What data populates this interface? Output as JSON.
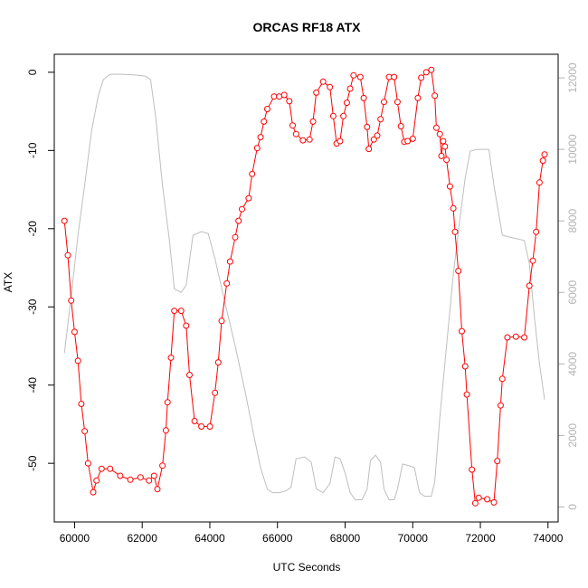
{
  "chart_data": {
    "type": "line",
    "title": "ORCAS RF18 ATX",
    "xlabel": "UTC Seconds",
    "ylabel": "ATX",
    "y2label": "",
    "xlim": [
      59400,
      74300
    ],
    "ylim": [
      -57.5,
      2.3
    ],
    "y2lim": [
      -420,
      12660
    ],
    "x_ticks": [
      60000,
      62000,
      64000,
      66000,
      68000,
      70000,
      72000,
      74000
    ],
    "x_tick_labels": [
      "60000",
      "62000",
      "64000",
      "66000",
      "68000",
      "70000",
      "72000",
      "74000"
    ],
    "y_ticks": [
      0,
      -10,
      -20,
      -30,
      -40,
      -50
    ],
    "y_tick_labels": [
      "0",
      "-10",
      "-20",
      "-30",
      "-40",
      "-50"
    ],
    "y2_ticks": [
      0,
      2000,
      4000,
      6000,
      8000,
      10000,
      12000
    ],
    "y2_tick_labels": [
      "0",
      "2000",
      "4000",
      "6000",
      "8000",
      "10000",
      "12000"
    ],
    "grid": false,
    "colors": {
      "atx": "#ff0000",
      "secondary": "#bebebe",
      "axis": "#000000",
      "axis_right": "#b3b3b3"
    },
    "series": [
      {
        "axis": "left",
        "marker": "open-circle",
        "points": [
          [
            59700,
            -19.0
          ],
          [
            59800,
            -23.4
          ],
          [
            59900,
            -29.2
          ],
          [
            60000,
            -33.2
          ],
          [
            60100,
            -36.9
          ],
          [
            60200,
            -42.4
          ],
          [
            60300,
            -45.9
          ],
          [
            60400,
            -50.0
          ],
          [
            60550,
            -53.7
          ],
          [
            60650,
            -52.2
          ],
          [
            60800,
            -50.7
          ],
          [
            61050,
            -50.7
          ],
          [
            61350,
            -51.6
          ],
          [
            61650,
            -52.1
          ],
          [
            61950,
            -51.8
          ],
          [
            62200,
            -52.2
          ],
          [
            62350,
            -51.6
          ],
          [
            62450,
            -53.3
          ],
          [
            62600,
            -50.3
          ],
          [
            62700,
            -45.8
          ],
          [
            62750,
            -42.2
          ],
          [
            62850,
            -36.5
          ],
          [
            62950,
            -30.5
          ],
          [
            63150,
            -30.5
          ],
          [
            63300,
            -32.4
          ],
          [
            63400,
            -38.7
          ],
          [
            63550,
            -44.6
          ],
          [
            63750,
            -45.3
          ],
          [
            64000,
            -45.3
          ],
          [
            64150,
            -41.0
          ],
          [
            64250,
            -37.1
          ],
          [
            64350,
            -31.8
          ],
          [
            64500,
            -27.0
          ],
          [
            64600,
            -24.2
          ],
          [
            64750,
            -21.1
          ],
          [
            64850,
            -19.0
          ],
          [
            64950,
            -17.5
          ],
          [
            65150,
            -16.1
          ],
          [
            65250,
            -13.0
          ],
          [
            65400,
            -9.7
          ],
          [
            65500,
            -8.3
          ],
          [
            65600,
            -6.3
          ],
          [
            65700,
            -4.7
          ],
          [
            65900,
            -3.1
          ],
          [
            66050,
            -3.1
          ],
          [
            66200,
            -2.9
          ],
          [
            66350,
            -3.7
          ],
          [
            66450,
            -6.8
          ],
          [
            66550,
            -7.9
          ],
          [
            66750,
            -8.7
          ],
          [
            66950,
            -8.6
          ],
          [
            67050,
            -6.3
          ],
          [
            67150,
            -2.6
          ],
          [
            67350,
            -1.2
          ],
          [
            67550,
            -1.9
          ],
          [
            67650,
            -5.6
          ],
          [
            67750,
            -9.1
          ],
          [
            67850,
            -8.8
          ],
          [
            67950,
            -5.6
          ],
          [
            68050,
            -3.9
          ],
          [
            68150,
            -2.1
          ],
          [
            68250,
            -0.4
          ],
          [
            68450,
            -0.6
          ],
          [
            68550,
            -3.3
          ],
          [
            68650,
            -7.0
          ],
          [
            68700,
            -9.8
          ],
          [
            68850,
            -8.6
          ],
          [
            68950,
            -8.1
          ],
          [
            69050,
            -6.0
          ],
          [
            69150,
            -3.8
          ],
          [
            69300,
            -0.6
          ],
          [
            69450,
            -0.6
          ],
          [
            69550,
            -3.8
          ],
          [
            69650,
            -6.9
          ],
          [
            69750,
            -8.9
          ],
          [
            69850,
            -8.8
          ],
          [
            70000,
            -8.5
          ],
          [
            70150,
            -3.3
          ],
          [
            70250,
            -0.7
          ],
          [
            70400,
            0.0
          ],
          [
            70550,
            0.3
          ],
          [
            70650,
            -3.0
          ],
          [
            70700,
            -7.1
          ],
          [
            70800,
            -7.9
          ],
          [
            70850,
            -10.7
          ],
          [
            70900,
            -8.8
          ],
          [
            70950,
            -9.5
          ],
          [
            71000,
            -11.2
          ],
          [
            71100,
            -14.6
          ],
          [
            71200,
            -17.4
          ],
          [
            71250,
            -20.4
          ],
          [
            71350,
            -25.4
          ],
          [
            71450,
            -33.1
          ],
          [
            71550,
            -37.6
          ],
          [
            71600,
            -41.2
          ],
          [
            71750,
            -50.8
          ],
          [
            71850,
            -55.1
          ],
          [
            71950,
            -54.4
          ],
          [
            72200,
            -54.6
          ],
          [
            72400,
            -55.0
          ],
          [
            72500,
            -49.7
          ],
          [
            72600,
            -42.6
          ],
          [
            72650,
            -39.2
          ],
          [
            72800,
            -33.9
          ],
          [
            73050,
            -33.8
          ],
          [
            73300,
            -33.9
          ],
          [
            73450,
            -27.3
          ],
          [
            73550,
            -24.1
          ],
          [
            73650,
            -20.4
          ],
          [
            73750,
            -14.1
          ],
          [
            73850,
            -11.3
          ],
          [
            73900,
            -10.5
          ]
        ]
      },
      {
        "axis": "right",
        "marker": "none",
        "points": [
          [
            59700,
            4300
          ],
          [
            59900,
            5900
          ],
          [
            60100,
            7600
          ],
          [
            60300,
            9000
          ],
          [
            60500,
            10500
          ],
          [
            60700,
            11500
          ],
          [
            60850,
            11950
          ],
          [
            61050,
            12100
          ],
          [
            61400,
            12100
          ],
          [
            61800,
            12080
          ],
          [
            62100,
            12050
          ],
          [
            62250,
            11950
          ],
          [
            62400,
            10900
          ],
          [
            62600,
            9000
          ],
          [
            62800,
            7500
          ],
          [
            62950,
            6100
          ],
          [
            63150,
            6000
          ],
          [
            63300,
            6200
          ],
          [
            63500,
            7600
          ],
          [
            63750,
            7700
          ],
          [
            63950,
            7650
          ],
          [
            64150,
            6950
          ],
          [
            64450,
            5700
          ],
          [
            64750,
            4500
          ],
          [
            65050,
            3200
          ],
          [
            65300,
            2000
          ],
          [
            65500,
            1100
          ],
          [
            65700,
            500
          ],
          [
            65850,
            400
          ],
          [
            66050,
            400
          ],
          [
            66250,
            450
          ],
          [
            66400,
            550
          ],
          [
            66550,
            1350
          ],
          [
            66800,
            1400
          ],
          [
            67000,
            1250
          ],
          [
            67150,
            500
          ],
          [
            67350,
            400
          ],
          [
            67550,
            650
          ],
          [
            67700,
            1400
          ],
          [
            67850,
            1350
          ],
          [
            68000,
            950
          ],
          [
            68150,
            400
          ],
          [
            68300,
            200
          ],
          [
            68500,
            200
          ],
          [
            68650,
            500
          ],
          [
            68750,
            1300
          ],
          [
            68900,
            1450
          ],
          [
            69050,
            1250
          ],
          [
            69150,
            500
          ],
          [
            69300,
            200
          ],
          [
            69450,
            200
          ],
          [
            69550,
            500
          ],
          [
            69700,
            1200
          ],
          [
            69900,
            1150
          ],
          [
            70050,
            1100
          ],
          [
            70200,
            400
          ],
          [
            70350,
            300
          ],
          [
            70550,
            300
          ],
          [
            70650,
            700
          ],
          [
            70800,
            2500
          ],
          [
            71000,
            4500
          ],
          [
            71200,
            6500
          ],
          [
            71400,
            8100
          ],
          [
            71550,
            9200
          ],
          [
            71700,
            9950
          ],
          [
            71900,
            10000
          ],
          [
            72100,
            10000
          ],
          [
            72250,
            10000
          ],
          [
            72400,
            9000
          ],
          [
            72650,
            7600
          ],
          [
            72850,
            7550
          ],
          [
            73100,
            7500
          ],
          [
            73300,
            7450
          ],
          [
            73450,
            6800
          ],
          [
            73600,
            5300
          ],
          [
            73750,
            4000
          ],
          [
            73900,
            3000
          ]
        ]
      }
    ]
  }
}
